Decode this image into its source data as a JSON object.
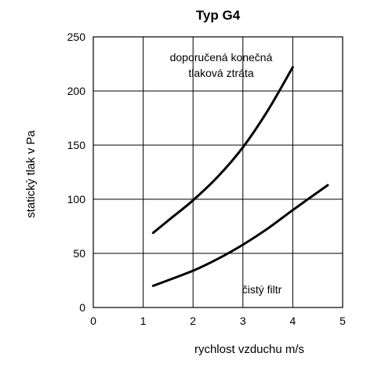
{
  "chart_data": {
    "type": "line",
    "title": "Typ G4",
    "xlabel": "rychlost vzduchu m/s",
    "ylabel": "statický tlak v Pa",
    "xlim": [
      0,
      5
    ],
    "ylim": [
      0,
      250
    ],
    "xticks": [
      0,
      1,
      2,
      3,
      4,
      5
    ],
    "yticks": [
      0,
      50,
      100,
      150,
      200,
      250
    ],
    "xtick_labels": [
      "0",
      "1",
      "2",
      "3",
      "4",
      "5"
    ],
    "ytick_labels": [
      "0",
      "50",
      "100",
      "150",
      "200",
      "250"
    ],
    "grid": true,
    "series": [
      {
        "annotation": [
          "doporučená konečná",
          "tlaková ztráta"
        ],
        "x": [
          1.2,
          1.6,
          2.0,
          2.5,
          3.0,
          3.5,
          4.0
        ],
        "y": [
          69,
          84,
          99,
          121,
          148,
          182,
          222
        ]
      },
      {
        "annotation": [
          "čistý filtr"
        ],
        "x": [
          1.2,
          2.0,
          2.5,
          3.0,
          3.5,
          4.0,
          4.7
        ],
        "y": [
          20,
          34,
          45,
          58,
          73,
          90,
          113
        ]
      }
    ]
  }
}
